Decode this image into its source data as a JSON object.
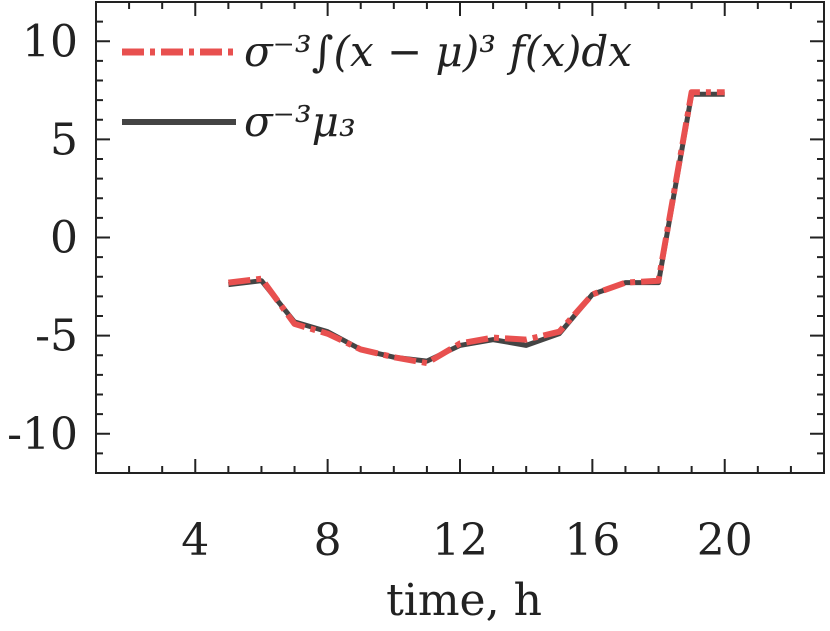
{
  "chart_data": {
    "type": "line",
    "xlabel": "time, h",
    "ylabel": "",
    "xlim": [
      1,
      23
    ],
    "ylim": [
      -12,
      12
    ],
    "xticks": [
      4,
      8,
      12,
      16,
      20
    ],
    "xtick_labels": [
      "4",
      "8",
      "12",
      "16",
      "20"
    ],
    "yticks": [
      10,
      5,
      0,
      -5,
      -10
    ],
    "ytick_labels": [
      "10",
      "5",
      "0",
      "-5",
      "-10"
    ],
    "grid": false,
    "legend_position": "top-left",
    "series": [
      {
        "name": "σ⁻³∫(x − μ)³ f(x)dx",
        "style": "dash-dot",
        "color": "#e8504f",
        "x": [
          5,
          6,
          7,
          8,
          9,
          10,
          11,
          12,
          13,
          14,
          15,
          16,
          17,
          18,
          19,
          20
        ],
        "y": [
          -2.3,
          -2.1,
          -4.4,
          -4.9,
          -5.7,
          -6.1,
          -6.4,
          -5.4,
          -5.1,
          -5.2,
          -4.8,
          -2.9,
          -2.3,
          -2.2,
          7.4,
          7.4
        ]
      },
      {
        "name": "σ⁻³μ₃",
        "style": "solid",
        "color": "#444444",
        "x": [
          5,
          6,
          7,
          8,
          9,
          10,
          11,
          12,
          13,
          14,
          15,
          16,
          17,
          18,
          19,
          20
        ],
        "y": [
          -2.4,
          -2.2,
          -4.3,
          -4.8,
          -5.7,
          -6.1,
          -6.3,
          -5.5,
          -5.2,
          -5.5,
          -4.9,
          -2.9,
          -2.3,
          -2.3,
          7.3,
          7.3
        ]
      }
    ]
  }
}
